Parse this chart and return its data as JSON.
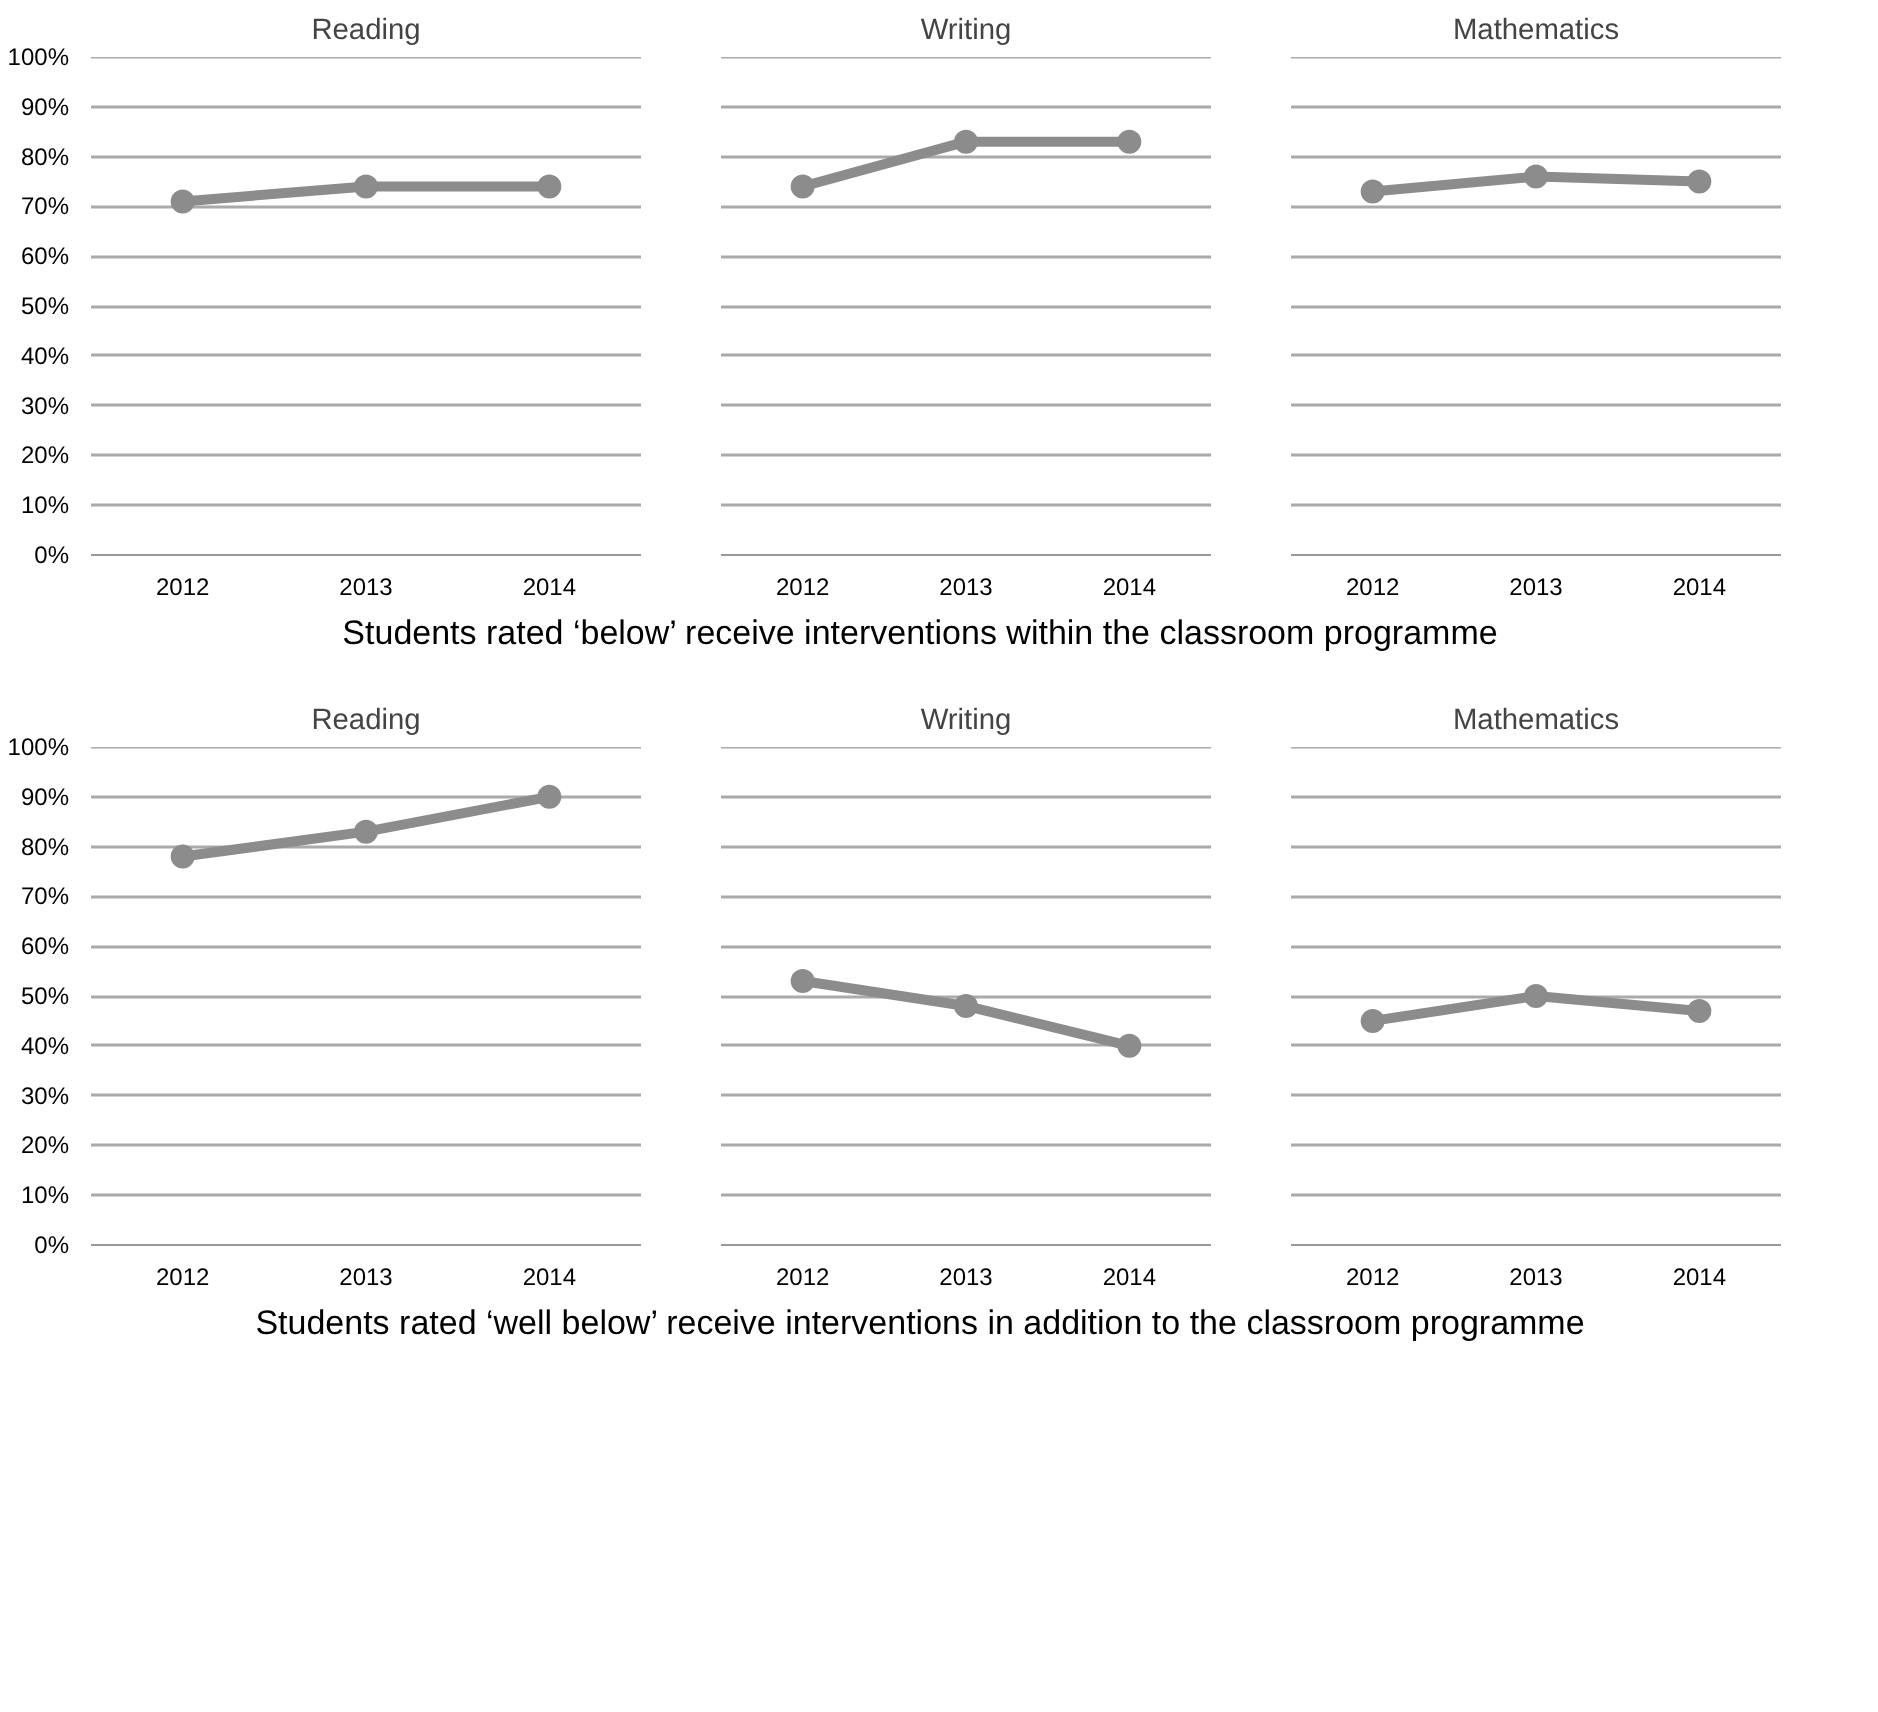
{
  "chart_data": [
    {
      "type": "line",
      "title": "Reading",
      "categories": [
        "2012",
        "2013",
        "2014"
      ],
      "series": [
        {
          "color": "#8c8c8c",
          "values": [
            71,
            74,
            74
          ]
        }
      ],
      "ylim": [
        0,
        100
      ],
      "yticks": [
        {
          "value": 0,
          "label": "0%"
        },
        {
          "value": 10,
          "label": "10%"
        },
        {
          "value": 20,
          "label": "20%"
        },
        {
          "value": 30,
          "label": "30%"
        },
        {
          "value": 40,
          "label": "40%"
        },
        {
          "value": 50,
          "label": "50%"
        },
        {
          "value": 60,
          "label": "60%"
        },
        {
          "value": 70,
          "label": "70%"
        },
        {
          "value": 80,
          "label": "80%"
        },
        {
          "value": 90,
          "label": "90%"
        },
        {
          "value": 100,
          "label": "100%"
        }
      ],
      "grid": "y",
      "marker": "circle",
      "line_style": "solid"
    },
    {
      "type": "line",
      "title": "Writing",
      "categories": [
        "2012",
        "2013",
        "2014"
      ],
      "series": [
        {
          "color": "#8c8c8c",
          "values": [
            74,
            83,
            83
          ]
        }
      ],
      "ylim": [
        0,
        100
      ],
      "yticks": [
        0,
        10,
        20,
        30,
        40,
        50,
        60,
        70,
        80,
        90,
        100
      ],
      "grid": "y",
      "marker": "circle",
      "line_style": "solid",
      "tick_labels": "x"
    },
    {
      "type": "line",
      "title": "Mathematics",
      "categories": [
        "2012",
        "2013",
        "2014"
      ],
      "series": [
        {
          "color": "#8c8c8c",
          "values": [
            73,
            76,
            75
          ]
        }
      ],
      "ylim": [
        0,
        100
      ],
      "yticks": [
        0,
        10,
        20,
        30,
        40,
        50,
        60,
        70,
        80,
        90,
        100
      ],
      "grid": "y",
      "marker": "circle",
      "line_style": "solid",
      "tick_labels": "x",
      "annotations": [
        "Students rated ‘below’ receive interventions within the classroom programme"
      ]
    },
    {
      "type": "line",
      "title": "Reading",
      "categories": [
        "2012",
        "2013",
        "2014"
      ],
      "series": [
        {
          "color": "#8c8c8c",
          "values": [
            78,
            83,
            90
          ]
        }
      ],
      "ylim": [
        0,
        100
      ],
      "yticks": [
        {
          "value": 0,
          "label": "0%"
        },
        {
          "value": 10,
          "label": "10%"
        },
        {
          "value": 20,
          "label": "20%"
        },
        {
          "value": 30,
          "label": "30%"
        },
        {
          "value": 40,
          "label": "40%"
        },
        {
          "value": 50,
          "label": "50%"
        },
        {
          "value": 60,
          "label": "60%"
        },
        {
          "value": 70,
          "label": "70%"
        },
        {
          "value": 80,
          "label": "80%"
        },
        {
          "value": 90,
          "label": "90%"
        },
        {
          "value": 100,
          "label": "100%"
        }
      ],
      "grid": "y",
      "marker": "circle",
      "line_style": "solid"
    },
    {
      "type": "line",
      "title": "Writing",
      "categories": [
        "2012",
        "2013",
        "2014"
      ],
      "series": [
        {
          "color": "#8c8c8c",
          "values": [
            53,
            48,
            40
          ]
        }
      ],
      "ylim": [
        0,
        100
      ],
      "yticks": [
        0,
        10,
        20,
        30,
        40,
        50,
        60,
        70,
        80,
        90,
        100
      ],
      "grid": "y",
      "marker": "circle",
      "line_style": "solid",
      "tick_labels": "x"
    },
    {
      "type": "line",
      "title": "Mathematics",
      "categories": [
        "2012",
        "2013",
        "2014"
      ],
      "series": [
        {
          "color": "#8c8c8c",
          "values": [
            45,
            50,
            47
          ]
        }
      ],
      "ylim": [
        0,
        100
      ],
      "yticks": [
        0,
        10,
        20,
        30,
        40,
        50,
        60,
        70,
        80,
        90,
        100
      ],
      "grid": "y",
      "marker": "circle",
      "line_style": "solid",
      "tick_labels": "x",
      "annotations": [
        "Students rated ‘well below’ receive interventions in addition to the classroom programme"
      ]
    }
  ]
}
